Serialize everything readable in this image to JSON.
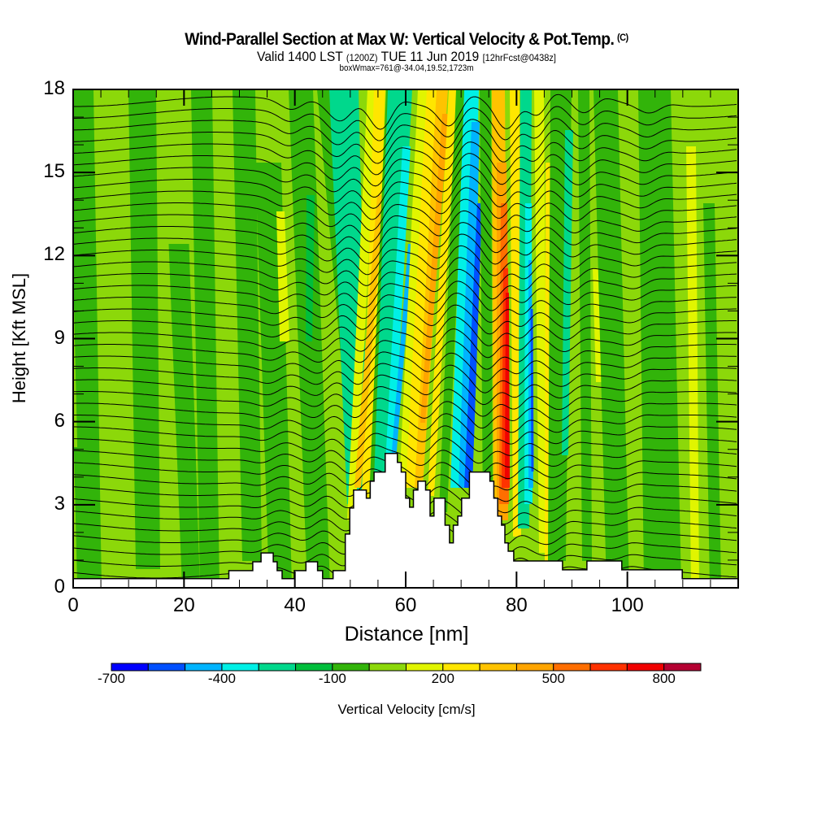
{
  "header": {
    "title": "Wind-Parallel Section at Max W: Vertical Velocity & Pot.Temp.",
    "copyright": "(C)",
    "subtitle_valid": "Valid 1400 LST",
    "subtitle_z": "(1200Z)",
    "subtitle_date": "TUE 11 Jun 2019",
    "subtitle_fcst": "[12hrFcst@0438z]",
    "boxinfo": "boxWmax=761@-34.04,19.52,1723m"
  },
  "chart_data": {
    "type": "heatmap",
    "title": "Wind-Parallel Section at Max W: Vertical Velocity & Pot.Temp.",
    "xlabel": "Distance [nm]",
    "ylabel": "Height [Kft MSL]",
    "xlim": [
      0,
      120
    ],
    "ylim": [
      0,
      18
    ],
    "x_ticks": [
      0,
      20,
      40,
      60,
      80,
      100
    ],
    "x_tick_labels": [
      "0",
      "20",
      "40",
      "60",
      "80",
      "100"
    ],
    "x_minor_step": 5,
    "y_ticks": [
      0,
      3,
      6,
      9,
      12,
      15,
      18
    ],
    "y_tick_labels": [
      "0",
      "3",
      "6",
      "9",
      "12",
      "15",
      "18"
    ],
    "y_minor_step": 1,
    "max_w_cm_s": 761,
    "colorbar": {
      "label": "Vertical Velocity [cm/s]",
      "boundaries": [
        -700,
        -600,
        -500,
        -400,
        -300,
        -200,
        -100,
        0,
        100,
        200,
        300,
        400,
        500,
        600,
        700,
        800,
        900
      ],
      "tick_values": [
        -700,
        -400,
        -100,
        200,
        500,
        800
      ],
      "tick_labels": [
        "-700",
        "-400",
        "-100",
        "200",
        "500",
        "800"
      ],
      "colors": [
        "#0000ff",
        "#0050ff",
        "#00b4ff",
        "#00f0e6",
        "#00d88c",
        "#00be3c",
        "#32b40a",
        "#8cd80a",
        "#e1f500",
        "#ffe600",
        "#ffc300",
        "#ffa500",
        "#ff6e00",
        "#ff3200",
        "#f00000",
        "#b40032"
      ]
    },
    "terrain_kft": [
      [
        0,
        0.33
      ],
      [
        28.1,
        0.33
      ],
      [
        28.1,
        0.62
      ],
      [
        32.4,
        0.62
      ],
      [
        32.4,
        0.94
      ],
      [
        33.9,
        0.94
      ],
      [
        33.9,
        1.26
      ],
      [
        36.1,
        1.26
      ],
      [
        36.1,
        0.94
      ],
      [
        36.8,
        0.94
      ],
      [
        36.8,
        0.62
      ],
      [
        37.7,
        0.62
      ],
      [
        37.7,
        0.33
      ],
      [
        39.9,
        0.33
      ],
      [
        39.9,
        0.62
      ],
      [
        42,
        0.62
      ],
      [
        42,
        0.94
      ],
      [
        44.1,
        0.94
      ],
      [
        44.1,
        0.62
      ],
      [
        45,
        0.62
      ],
      [
        45,
        0.33
      ],
      [
        46.9,
        0.33
      ],
      [
        46.9,
        0.62
      ],
      [
        49.1,
        0.62
      ],
      [
        49.1,
        0.94
      ],
      [
        49.1,
        0.97
      ],
      [
        49.1,
        1.94
      ],
      [
        49.9,
        1.94
      ],
      [
        49.9,
        2.88
      ],
      [
        50.6,
        2.88
      ],
      [
        50.6,
        3.53
      ],
      [
        52.9,
        3.53
      ],
      [
        52.9,
        3.24
      ],
      [
        53.6,
        3.24
      ],
      [
        53.6,
        3.85
      ],
      [
        54.3,
        3.85
      ],
      [
        54.3,
        4.18
      ],
      [
        56.3,
        4.18
      ],
      [
        56.3,
        4.85
      ],
      [
        58.5,
        4.85
      ],
      [
        58.5,
        4.53
      ],
      [
        59.2,
        4.53
      ],
      [
        59.2,
        4.18
      ],
      [
        60,
        4.18
      ],
      [
        60,
        3.24
      ],
      [
        60.7,
        3.24
      ],
      [
        60.7,
        2.91
      ],
      [
        61.4,
        2.91
      ],
      [
        61.4,
        3.53
      ],
      [
        62.2,
        3.53
      ],
      [
        62.2,
        3.85
      ],
      [
        63.6,
        3.85
      ],
      [
        63.6,
        3.53
      ],
      [
        64.4,
        3.53
      ],
      [
        64.4,
        2.59
      ],
      [
        65.1,
        2.59
      ],
      [
        65.1,
        3.24
      ],
      [
        67.1,
        3.24
      ],
      [
        67.1,
        2.26
      ],
      [
        67.9,
        2.26
      ],
      [
        67.9,
        1.62
      ],
      [
        68.6,
        1.62
      ],
      [
        68.6,
        2.26
      ],
      [
        69.4,
        2.26
      ],
      [
        69.4,
        2.59
      ],
      [
        70.1,
        2.59
      ],
      [
        70.1,
        3.24
      ],
      [
        71.5,
        3.24
      ],
      [
        71.5,
        4.18
      ],
      [
        75.2,
        4.18
      ],
      [
        75.2,
        3.85
      ],
      [
        75.9,
        3.85
      ],
      [
        75.9,
        3.24
      ],
      [
        76.6,
        3.24
      ],
      [
        76.6,
        2.59
      ],
      [
        77.3,
        2.59
      ],
      [
        77.3,
        2.26
      ],
      [
        77.9,
        2.26
      ],
      [
        77.9,
        1.62
      ],
      [
        78.5,
        1.62
      ],
      [
        78.5,
        1.32
      ],
      [
        79.5,
        1.32
      ],
      [
        79.5,
        0.97
      ],
      [
        88.3,
        0.97
      ],
      [
        88.3,
        0.65
      ],
      [
        92.7,
        0.65
      ],
      [
        92.7,
        0.97
      ],
      [
        99,
        0.97
      ],
      [
        99,
        0.65
      ],
      [
        109.9,
        0.65
      ],
      [
        109.9,
        0.33
      ],
      [
        120,
        0.33
      ]
    ]
  }
}
